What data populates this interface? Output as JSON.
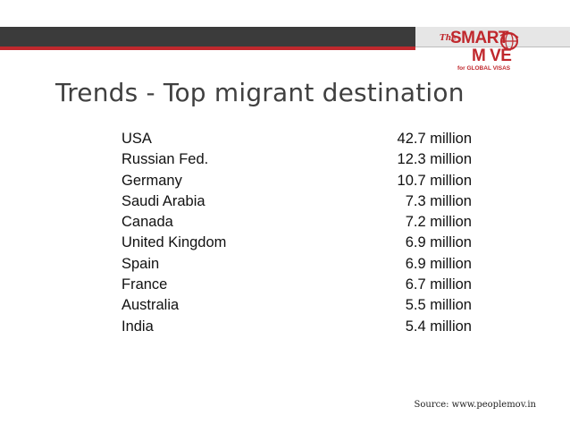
{
  "slide": {
    "title": "Trends - Top migrant destination",
    "source": "Source: www.peoplemov.in"
  },
  "logo": {
    "the": "The",
    "smart": "SMART",
    "move": "M   VE",
    "tagline": "for GLOBAL VISAS"
  },
  "destinations": [
    {
      "country": "USA",
      "value": "42.7 million"
    },
    {
      "country": "Russian Fed.",
      "value": "12.3 million"
    },
    {
      "country": "Germany",
      "value": "10.7 million"
    },
    {
      "country": "Saudi Arabia",
      "value": "7.3 million"
    },
    {
      "country": "Canada",
      "value": "7.2 million"
    },
    {
      "country": "United Kingdom",
      "value": "6.9 million"
    },
    {
      "country": "Spain",
      "value": "6.9 million"
    },
    {
      "country": "France",
      "value": "6.7 million"
    },
    {
      "country": "Australia",
      "value": "5.5 million"
    },
    {
      "country": "India",
      "value": "5.4 million"
    }
  ],
  "colors": {
    "accent": "#c0282d",
    "bar": "#3b3b3b",
    "title": "#404040"
  }
}
